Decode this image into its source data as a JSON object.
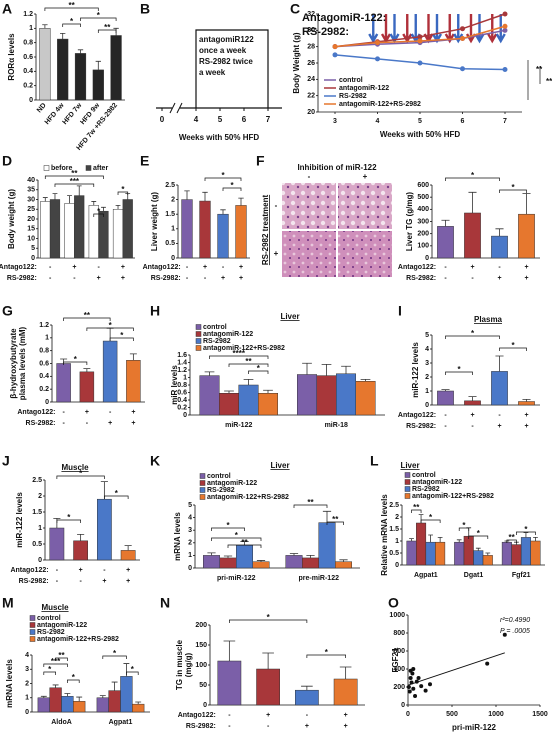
{
  "chart_data": [
    {
      "type": "bar",
      "label": "A",
      "ylabel": "RORα levels",
      "ylim": [
        0,
        1.2
      ],
      "yticks": [
        0,
        0.2,
        0.4,
        0.6,
        0.8,
        1,
        1.2
      ],
      "categories": [
        "ND",
        "HFD 4w",
        "HFD 7w",
        "HFD 9w",
        "HFD 7w +RS-2982"
      ],
      "colors": [
        "#c8c8c8",
        "#262626",
        "#262626",
        "#262626",
        "#262626"
      ],
      "series": [
        {
          "values": [
            1,
            0.85,
            0.65,
            0.42,
            0.9
          ],
          "errors": [
            0.05,
            0.08,
            0.05,
            0.12,
            0.1
          ]
        }
      ],
      "annotations": [
        "**",
        "*",
        "*",
        "**"
      ]
    },
    {
      "type": "timeline",
      "label": "B",
      "text": [
        "antagomiR122",
        "once a week",
        "RS-2982 twice",
        "a week"
      ],
      "categories": [
        "0",
        "4",
        "5",
        "6",
        "7"
      ],
      "xlabel": "Weeks with 50% HFD"
    },
    {
      "type": "line",
      "label": "C",
      "ylabel": "Body Weight (g)",
      "xlabel": "Weeks with 50% HFD",
      "ylim": [
        20,
        32
      ],
      "yticks": [
        20,
        22,
        24,
        26,
        28,
        30,
        32
      ],
      "xlim": [
        2.6,
        7.4
      ],
      "xticks": [
        3,
        4,
        5,
        6,
        7
      ],
      "x": [
        3,
        4,
        5,
        6,
        7
      ],
      "series": [
        {
          "name": "control",
          "color": "#7b5fa8",
          "values": [
            28,
            28.3,
            28.5,
            29,
            30
          ]
        },
        {
          "name": "antagomiR-122",
          "color": "#a8373a",
          "values": [
            28,
            28.6,
            29.2,
            30.2,
            32
          ]
        },
        {
          "name": "RS-2982",
          "color": "#4a78c8",
          "values": [
            27,
            26.5,
            26,
            25.3,
            25.2
          ]
        },
        {
          "name": "antagomiR-122+RS-2982",
          "color": "#e6772e",
          "values": [
            28,
            28.5,
            28.7,
            29,
            30.5
          ]
        }
      ],
      "notes": [
        {
          "text": "AntagomiR-122:",
          "color": "#b0303a"
        },
        {
          "text": "RS-2982:",
          "color": "#3a68c0"
        }
      ],
      "annotations": [
        "**",
        "**"
      ]
    },
    {
      "type": "bar",
      "label": "D",
      "ylabel": "Body weight (g)",
      "ylim": [
        0,
        40
      ],
      "yticks": [
        0,
        5,
        10,
        15,
        20,
        25,
        30,
        35,
        40
      ],
      "series": [
        {
          "name": "before",
          "color": "#ffffff",
          "values": [
            29,
            28,
            27,
            25
          ],
          "errors": [
            2,
            4,
            2,
            2
          ]
        },
        {
          "name": "after",
          "color": "#444444",
          "values": [
            30,
            32,
            24,
            30
          ],
          "errors": [
            3,
            5,
            2,
            3
          ]
        }
      ],
      "treatments": [
        {
          "label": "Antago122:",
          "signs": [
            "-",
            "+",
            "-",
            "+"
          ]
        },
        {
          "label": "RS-2982:",
          "signs": [
            "-",
            "-",
            "+",
            "+"
          ]
        }
      ],
      "annotations": [
        "**",
        "***",
        "*",
        "*"
      ]
    },
    {
      "type": "bar",
      "label": "E",
      "ylabel": "Liver weight (g)",
      "ylim": [
        0,
        2.5
      ],
      "yticks": [
        0,
        0.5,
        1,
        1.5,
        2,
        2.5
      ],
      "colors": [
        "#7b5fa8",
        "#a8373a",
        "#4a78c8",
        "#e6772e"
      ],
      "series": [
        {
          "values": [
            2,
            1.95,
            1.5,
            1.8
          ],
          "errors": [
            0.3,
            0.3,
            0.15,
            0.25
          ]
        }
      ],
      "treatments": [
        {
          "label": "Antago122:",
          "signs": [
            "-",
            "+",
            "-",
            "+"
          ]
        },
        {
          "label": "RS-2982:",
          "signs": [
            "-",
            "-",
            "+",
            "+"
          ]
        }
      ],
      "annotations": [
        "*",
        "*"
      ]
    },
    {
      "type": "bar",
      "label": "F",
      "ylabel": "Liver TG (g/mg)",
      "ylim": [
        0,
        600
      ],
      "yticks": [
        0,
        100,
        200,
        300,
        400,
        500,
        600
      ],
      "colors": [
        "#7b5fa8",
        "#a8373a",
        "#4a78c8",
        "#e6772e"
      ],
      "series": [
        {
          "values": [
            260,
            370,
            180,
            360
          ],
          "errors": [
            50,
            170,
            60,
            170
          ]
        }
      ],
      "treatments": [
        {
          "label": "Antago122:",
          "signs": [
            "-",
            "+",
            "-",
            "+"
          ]
        },
        {
          "label": "RS-2982:",
          "signs": [
            "-",
            "-",
            "+",
            "+"
          ]
        }
      ],
      "annotations": [
        "*",
        "*"
      ],
      "image_title": "Inhibition of miR-122",
      "image_side": "RS-2982 treatment",
      "image_cols": [
        "-",
        "+"
      ],
      "image_rows": [
        "-",
        "+"
      ]
    },
    {
      "type": "bar",
      "label": "G",
      "ylabel": [
        "β-hydroxybutyrate",
        "plasma levels (mM)"
      ],
      "ylim": [
        0,
        1.2
      ],
      "yticks": [
        0,
        0.2,
        0.4,
        0.6,
        0.8,
        1,
        1.2
      ],
      "colors": [
        "#7b5fa8",
        "#a8373a",
        "#4a78c8",
        "#e6772e"
      ],
      "series": [
        {
          "values": [
            0.6,
            0.47,
            0.95,
            0.65
          ],
          "errors": [
            0.07,
            0.05,
            0.2,
            0.1
          ]
        }
      ],
      "treatments": [
        {
          "label": "Antago122:",
          "signs": [
            "-",
            "+",
            "-",
            "+"
          ]
        },
        {
          "label": "RS-2982:",
          "signs": [
            "-",
            "-",
            "+",
            "+"
          ]
        }
      ],
      "annotations": [
        "**",
        "*",
        "*",
        "*"
      ]
    },
    {
      "type": "bar",
      "label": "H",
      "title": "Liver",
      "ylabel": "miR levels",
      "ylim": [
        0,
        1.6
      ],
      "yticks": [
        0,
        0.2,
        0.4,
        0.6,
        0.8,
        1,
        1.2,
        1.4,
        1.6
      ],
      "categories": [
        "miR-122",
        "miR-18"
      ],
      "series": [
        {
          "name": "control",
          "color": "#7b5fa8",
          "values": [
            1.05,
            1.08
          ],
          "errors": [
            0.1,
            0.3
          ]
        },
        {
          "name": "antagomiR-122",
          "color": "#a8373a",
          "values": [
            0.58,
            1.05
          ],
          "errors": [
            0.06,
            0.3
          ]
        },
        {
          "name": "RS-2982",
          "color": "#4a78c8",
          "values": [
            0.8,
            1.1
          ],
          "errors": [
            0.15,
            0.2
          ]
        },
        {
          "name": "antagomiR-122+RS-2982",
          "color": "#e6772e",
          "values": [
            0.58,
            0.9
          ],
          "errors": [
            0.08,
            0.05
          ]
        }
      ],
      "annotations": [
        "****",
        "**",
        "*"
      ]
    },
    {
      "type": "bar",
      "label": "I",
      "title": "Plasma",
      "ylabel": "miR-122 levels",
      "ylim": [
        0,
        5
      ],
      "yticks": [
        0,
        1,
        2,
        3,
        4,
        5
      ],
      "colors": [
        "#7b5fa8",
        "#a8373a",
        "#4a78c8",
        "#e6772e"
      ],
      "series": [
        {
          "values": [
            1,
            0.3,
            2.4,
            0.25
          ],
          "errors": [
            0.1,
            0.3,
            1.1,
            0.15
          ]
        }
      ],
      "treatments": [
        {
          "label": "Antago122:",
          "signs": [
            "-",
            "+",
            "-",
            "+"
          ]
        },
        {
          "label": "RS-2982:",
          "signs": [
            "-",
            "-",
            "+",
            "+"
          ]
        }
      ],
      "annotations": [
        "*",
        "*",
        "*"
      ]
    },
    {
      "type": "bar",
      "label": "J",
      "title": "Muscle",
      "ylabel": "miR-122 levels",
      "ylim": [
        0,
        2.5
      ],
      "yticks": [
        0,
        0.5,
        1,
        1.5,
        2,
        2.5
      ],
      "colors": [
        "#7b5fa8",
        "#a8373a",
        "#4a78c8",
        "#e6772e"
      ],
      "series": [
        {
          "values": [
            1,
            0.6,
            1.9,
            0.3
          ],
          "errors": [
            0.3,
            0.2,
            0.55,
            0.15
          ]
        }
      ],
      "treatments": [
        {
          "label": "Antago122:",
          "signs": [
            "-",
            "+",
            "-",
            "+"
          ]
        },
        {
          "label": "RS-2982:",
          "signs": [
            "-",
            "-",
            "+",
            "+"
          ]
        }
      ],
      "annotations": [
        "*",
        "*",
        "*"
      ]
    },
    {
      "type": "bar",
      "label": "K",
      "title": "Liver",
      "ylabel": "mRNA levels",
      "ylim": [
        0,
        5
      ],
      "yticks": [
        0,
        1,
        2,
        3,
        4,
        5
      ],
      "categories": [
        "pri-miR-122",
        "pre-miR-122"
      ],
      "series": [
        {
          "name": "control",
          "color": "#7b5fa8",
          "values": [
            1,
            1
          ],
          "errors": [
            0.2,
            0.15
          ]
        },
        {
          "name": "antagomiR-122",
          "color": "#a8373a",
          "values": [
            0.8,
            0.8
          ],
          "errors": [
            0.15,
            0.2
          ]
        },
        {
          "name": "RS-2982",
          "color": "#4a78c8",
          "values": [
            1.8,
            3.6
          ],
          "errors": [
            0.3,
            0.9
          ]
        },
        {
          "name": "antagomiR-122+RS-2982",
          "color": "#e6772e",
          "values": [
            0.5,
            0.5
          ],
          "errors": [
            0.1,
            0.15
          ]
        }
      ],
      "annotations": [
        "*",
        "*",
        "**",
        "**",
        "**"
      ]
    },
    {
      "type": "bar",
      "label": "L",
      "title": "Liver",
      "ylabel": "Relative mRNA levels",
      "ylim": [
        0,
        2.5
      ],
      "yticks": [
        0,
        0.5,
        1,
        1.5,
        2,
        2.5
      ],
      "categories": [
        "Agpat1",
        "Dgat1",
        "Fgf21"
      ],
      "series": [
        {
          "name": "control",
          "color": "#7b5fa8",
          "values": [
            1,
            0.95,
            0.95
          ],
          "errors": [
            0.1,
            0.1,
            0.05
          ]
        },
        {
          "name": "antagomiR-122",
          "color": "#a8373a",
          "values": [
            1.75,
            1.2,
            0.85
          ],
          "errors": [
            0.35,
            0.35,
            0.1
          ]
        },
        {
          "name": "RS-2982",
          "color": "#4a78c8",
          "values": [
            0.95,
            0.6,
            1.15
          ],
          "errors": [
            0.3,
            0.1,
            0.2
          ]
        },
        {
          "name": "antagomiR-122+RS-2982",
          "color": "#e6772e",
          "values": [
            0.95,
            0.4,
            1
          ],
          "errors": [
            0.2,
            0.1,
            0.15
          ]
        }
      ],
      "annotations": [
        "**",
        "*",
        "*",
        "*",
        "**",
        "*"
      ]
    },
    {
      "type": "bar",
      "label": "M",
      "title": "Muscle",
      "ylabel": "mRNA levels",
      "ylim": [
        0,
        4
      ],
      "yticks": [
        0,
        1,
        2,
        3,
        4
      ],
      "categories": [
        "AldoA",
        "Agpat1"
      ],
      "series": [
        {
          "name": "control",
          "color": "#7b5fa8",
          "values": [
            1,
            1
          ],
          "errors": [
            0.1,
            0.15
          ]
        },
        {
          "name": "antagomiR-122",
          "color": "#a8373a",
          "values": [
            1.7,
            1.5
          ],
          "errors": [
            0.2,
            0.6
          ]
        },
        {
          "name": "RS-2982",
          "color": "#4a78c8",
          "values": [
            1.1,
            2.5
          ],
          "errors": [
            0.2,
            0.9
          ]
        },
        {
          "name": "antagomiR-122+RS-2982",
          "color": "#e6772e",
          "values": [
            0.75,
            0.55
          ],
          "errors": [
            0.3,
            0.15
          ]
        }
      ],
      "annotations": [
        "*",
        "***",
        "**",
        "*",
        "*",
        "*"
      ]
    },
    {
      "type": "bar",
      "label": "N",
      "ylabel": [
        "TG in muscle",
        "(mg/g)"
      ],
      "ylim": [
        0,
        200
      ],
      "yticks": [
        0,
        50,
        100,
        150,
        200
      ],
      "colors": [
        "#7b5fa8",
        "#a8373a",
        "#4a78c8",
        "#e6772e"
      ],
      "series": [
        {
          "values": [
            110,
            90,
            37,
            65
          ],
          "errors": [
            50,
            40,
            10,
            30
          ]
        }
      ],
      "treatments": [
        {
          "label": "Antago122:",
          "signs": [
            "-",
            "+",
            "-",
            "+"
          ]
        },
        {
          "label": "RS-2982:",
          "signs": [
            "-",
            "-",
            "+",
            "+"
          ]
        }
      ],
      "annotations": [
        "*",
        "*"
      ]
    },
    {
      "type": "scatter",
      "label": "O",
      "ylabel": "FGF21",
      "xlabel": "pri-miR-122",
      "xlim": [
        0,
        1500
      ],
      "xticks": [
        0,
        500,
        1000,
        1500
      ],
      "ylim": [
        0,
        1000
      ],
      "yticks": [
        0,
        200,
        400,
        600,
        800,
        1000
      ],
      "x": [
        10,
        20,
        30,
        40,
        50,
        60,
        80,
        100,
        120,
        150,
        200,
        250,
        30,
        60,
        1100,
        900
      ],
      "y": [
        200,
        150,
        300,
        250,
        350,
        180,
        100,
        260,
        300,
        210,
        160,
        230,
        380,
        400,
        780,
        460
      ],
      "fit": {
        "x": [
          0,
          1100
        ],
        "y": [
          220,
          580
        ]
      },
      "notes": [
        {
          "text": "r²=0.4990"
        },
        {
          "text": "P = .0005"
        }
      ]
    }
  ]
}
